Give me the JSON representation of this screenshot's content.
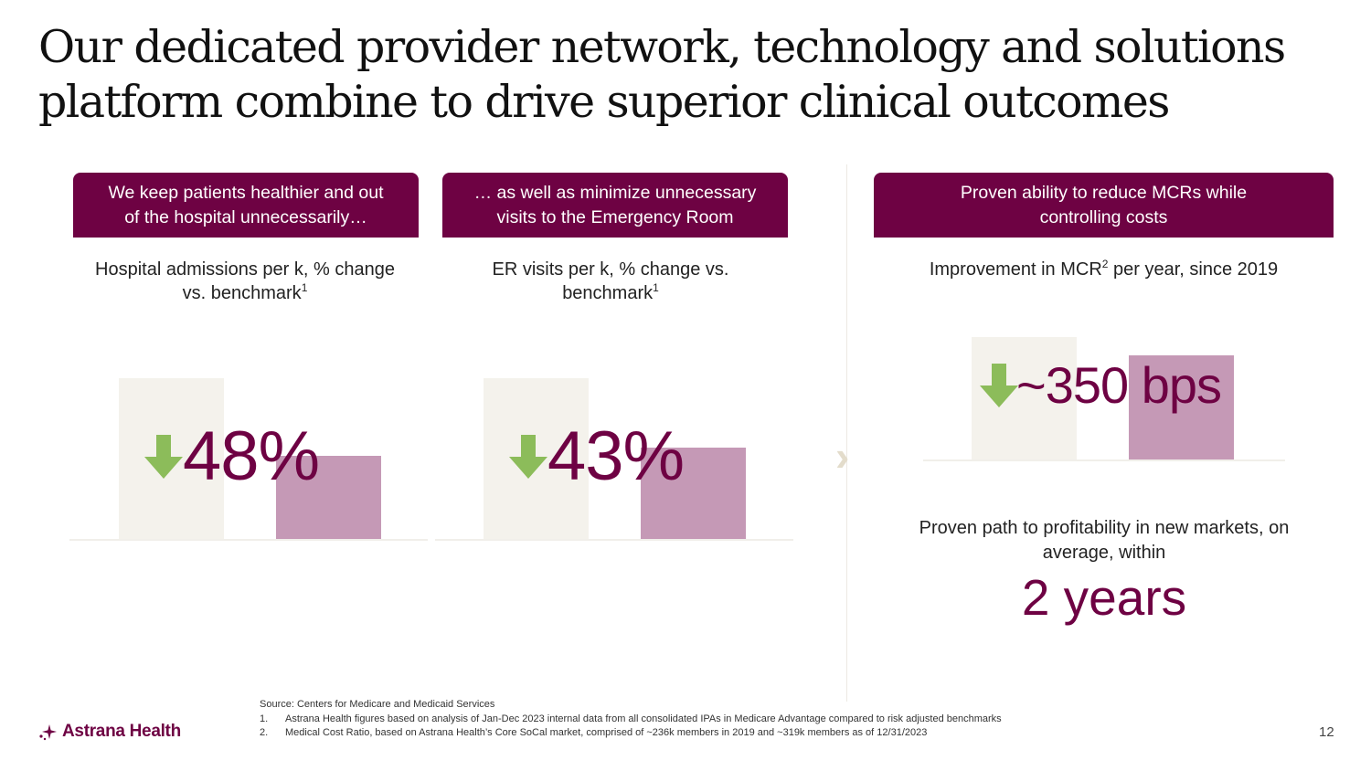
{
  "title": {
    "line1": "Our dedicated provider network, technology and solutions",
    "line2": "platform combine to drive superior clinical outcomes"
  },
  "panels": [
    {
      "header_line1": "We keep patients healthier and out",
      "header_line2": "of the hospital unnecessarily…",
      "subtitle_line1": "Hospital admissions per k, % change",
      "subtitle_line2": "vs. benchmark",
      "subtitle_sup": "1",
      "value": "48%",
      "benchmark_level": 100,
      "astrana_level": 52
    },
    {
      "header_line1": "… as well as minimize unnecessary",
      "header_line2": "visits to the Emergency Room",
      "subtitle_line1": "ER visits per k, % change vs.",
      "subtitle_line2": "benchmark",
      "subtitle_sup": "1",
      "value": "43%",
      "benchmark_level": 100,
      "astrana_level": 57
    },
    {
      "header_line1": "Proven ability to reduce MCRs while",
      "header_line2": "controlling costs",
      "subtitle_pre": "Improvement in MCR",
      "subtitle_sup": "2",
      "subtitle_post": " per year, since 2019",
      "value": "~350 bps"
    }
  ],
  "profitability": {
    "line1": "Proven path to profitability in new markets, on",
    "line2": "average, within",
    "value": "2 years"
  },
  "footnotes": {
    "source": "Source: Centers for Medicare and Medicaid Services",
    "items": [
      {
        "num": "1.",
        "text": "Astrana Health figures based on analysis of Jan-Dec 2023 internal data from all consolidated IPAs in Medicare Advantage compared to risk adjusted benchmarks"
      },
      {
        "num": "2.",
        "text": "Medical Cost Ratio, based on Astrana Health’s Core SoCal market, comprised of ~236k members in 2019 and ~319k members as of 12/31/2023"
      }
    ]
  },
  "logo": {
    "text": "Astrana Health"
  },
  "page_number": "12",
  "colors": {
    "brand": "#6e0243",
    "bar_light": "#f4f2ec",
    "bar_accent": "#c599b6",
    "arrow_green": "#8cbc5a"
  }
}
